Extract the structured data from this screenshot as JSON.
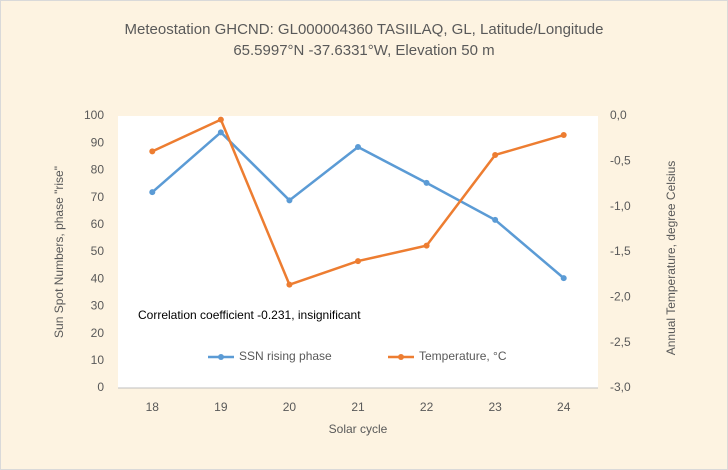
{
  "chart_data": {
    "type": "line",
    "title": [
      "Meteostation GHCND: GL000004360 TASIILAQ, GL, Latitude/Longitude",
      "65.5997°N -37.6331°W, Elevation 50 m"
    ],
    "x_label": "Solar cycle",
    "y_label": "Sun Spot Numbers, phase \"rise\"",
    "y2_label": "Annual Temperature, degree Celsius",
    "annotation": "Correlation coefficient -0.231, insignificant",
    "categories": [
      "18",
      "19",
      "20",
      "21",
      "22",
      "23",
      "24"
    ],
    "series": [
      {
        "name": "SSN rising phase",
        "color": "#5b9bd5",
        "values": [
          72,
          94,
          69,
          88.6,
          75.4,
          61.8,
          40.4
        ]
      },
      {
        "name": "Temperature, °C",
        "color": "#ed7d31",
        "axis": "y2",
        "values": [
          -0.39,
          -0.04,
          -1.86,
          -1.6,
          -1.43,
          -0.43,
          -0.21
        ]
      }
    ],
    "ylim": [
      0,
      100
    ],
    "yticks": [
      0,
      10,
      20,
      30,
      40,
      50,
      60,
      70,
      80,
      90,
      100
    ],
    "y2lim": [
      -3,
      0
    ],
    "y2ticks": [
      {
        "value": 0,
        "label": "0,0"
      },
      {
        "value": -0.5,
        "label": "-0,5"
      },
      {
        "value": -1,
        "label": "-1,0"
      },
      {
        "value": -1.5,
        "label": "-1,5"
      },
      {
        "value": -2,
        "label": "-2,0"
      },
      {
        "value": -2.5,
        "label": "-2,5"
      },
      {
        "value": -3,
        "label": "-3,0"
      }
    ],
    "grid": false,
    "legend": "bottom"
  }
}
